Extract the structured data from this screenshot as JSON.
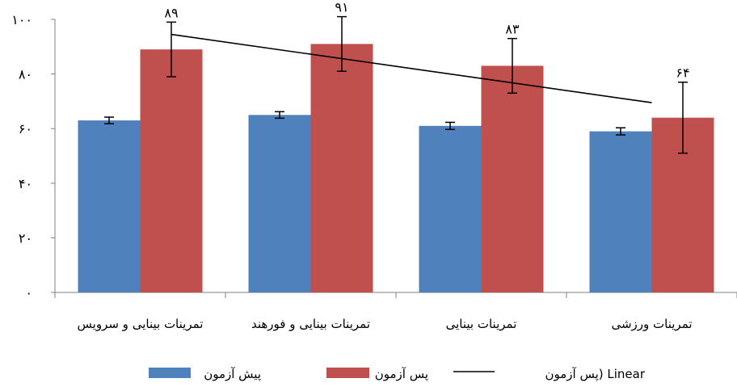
{
  "chart_data": {
    "type": "bar",
    "categories": [
      "تمرینات بینایی و سرویس",
      "تمرینات بینایی و فورهند",
      "تمرینات بینایی",
      "تمرینات ورزشی"
    ],
    "series": [
      {
        "name": "پیش آزمون",
        "color": "#4f81bd",
        "values": [
          63,
          65,
          61,
          59
        ],
        "error": [
          1.2,
          1.2,
          1.3,
          1.3
        ]
      },
      {
        "name": "پس آزمون",
        "color": "#c0504d",
        "values": [
          89,
          91,
          83,
          64
        ],
        "error": [
          10,
          10,
          10,
          13
        ],
        "data_labels": [
          "۸۹",
          "۹۱",
          "۸۳",
          "۶۴"
        ]
      }
    ],
    "trendline": {
      "name": "Linear (پس آزمون)",
      "legend_text": "پس آزمون) Linear",
      "start": 94.5,
      "end": 69.5,
      "color": "#000000"
    },
    "ylim": [
      0,
      100
    ],
    "yticks": [
      0,
      20,
      40,
      60,
      80,
      100
    ],
    "ytick_labels": [
      "۰",
      "۲۰",
      "۴۰",
      "۶۰",
      "۸۰",
      "۱۰۰"
    ],
    "legend_position": "bottom",
    "grid": false,
    "title": "",
    "xlabel": "",
    "ylabel": ""
  }
}
